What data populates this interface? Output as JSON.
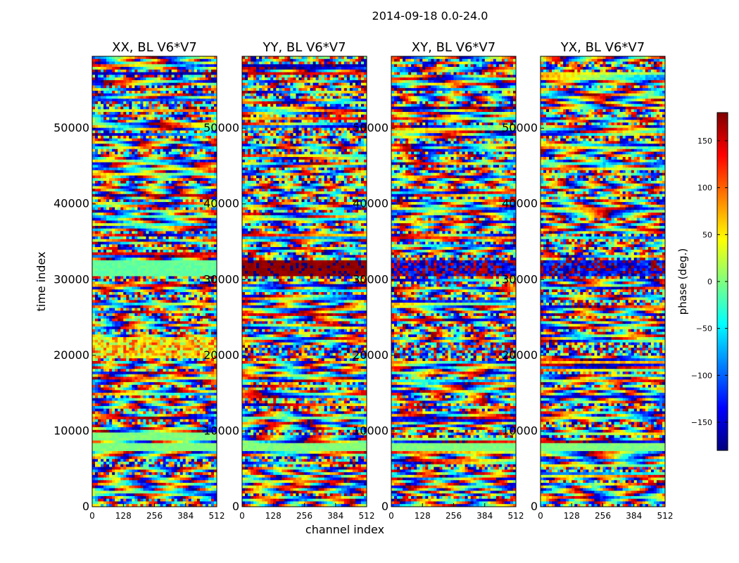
{
  "figure_title": "2014-09-18 0.0-24.0",
  "xlabel": "channel index",
  "ylabel": "time index",
  "colorbar": {
    "label": "phase (deg.)",
    "range": [
      -180,
      180
    ],
    "ticks": [
      -150,
      -100,
      -50,
      0,
      50,
      100,
      150
    ],
    "tick_labels": [
      "−150",
      "−100",
      "−50",
      "0",
      "50",
      "100",
      "150"
    ],
    "colormap": "jet",
    "colors": [
      "#00007f",
      "#0000ff",
      "#007fff",
      "#00ffff",
      "#7fff7f",
      "#ffff00",
      "#ff7f00",
      "#ff0000",
      "#7f0000"
    ]
  },
  "chart_data": [
    {
      "type": "heatmap",
      "title": "XX, BL V6*V7",
      "xlabel": "channel index",
      "ylabel": "time index",
      "xlim": [
        0,
        512
      ],
      "ylim": [
        0,
        59500
      ],
      "x_ticks": [
        0,
        128,
        256,
        384,
        512
      ],
      "y_ticks": [
        0,
        10000,
        20000,
        30000,
        40000,
        50000
      ],
      "value_label": "phase (deg.)",
      "value_range": [
        -180,
        180
      ],
      "notable_bands": [
        {
          "t_from": 30500,
          "t_to": 32500,
          "phase_deg": -10,
          "description": "smooth"
        },
        {
          "t_from": 7200,
          "t_to": 8500,
          "phase_deg": 0,
          "description": "flat"
        },
        {
          "t_from": 8900,
          "t_to": 9700,
          "phase_deg": 0,
          "description": "flat"
        },
        {
          "t_from": 19500,
          "t_to": 22500,
          "phase_deg": 60,
          "description": "mixed"
        }
      ]
    },
    {
      "type": "heatmap",
      "title": "YY, BL V6*V7",
      "xlabel": "channel index",
      "ylabel": "time index",
      "xlim": [
        0,
        512
      ],
      "ylim": [
        0,
        59500
      ],
      "x_ticks": [
        0,
        128,
        256,
        384,
        512
      ],
      "y_ticks": [
        0,
        10000,
        20000,
        30000,
        40000,
        50000
      ],
      "value_label": "phase (deg.)",
      "value_range": [
        -180,
        180
      ],
      "notable_bands": [
        {
          "t_from": 30500,
          "t_to": 32500,
          "phase_deg": 175,
          "description": "constant"
        },
        {
          "t_from": 7200,
          "t_to": 8500,
          "phase_deg": 0,
          "description": "flat"
        },
        {
          "t_from": 20000,
          "t_to": 21500,
          "phase_deg": 180,
          "description": "noisy"
        }
      ]
    },
    {
      "type": "heatmap",
      "title": "XY, BL V6*V7",
      "xlabel": "channel index",
      "ylabel": "time index",
      "xlim": [
        0,
        512
      ],
      "ylim": [
        0,
        59500
      ],
      "x_ticks": [
        0,
        128,
        256,
        384,
        512
      ],
      "y_ticks": [
        0,
        10000,
        20000,
        30000,
        40000,
        50000
      ],
      "value_label": "phase (deg.)",
      "value_range": [
        -180,
        180
      ],
      "notable_bands": [
        {
          "t_from": 30500,
          "t_to": 32500,
          "phase_deg": -160,
          "description": "mixed"
        },
        {
          "t_from": 7200,
          "t_to": 8500,
          "phase_deg": 0,
          "description": "flat"
        },
        {
          "t_from": 20000,
          "t_to": 21500,
          "phase_deg": -120,
          "description": "noisy"
        }
      ]
    },
    {
      "type": "heatmap",
      "title": "YX, BL V6*V7",
      "xlabel": "channel index",
      "ylabel": "time index",
      "xlim": [
        0,
        512
      ],
      "ylim": [
        0,
        59500
      ],
      "x_ticks": [
        0,
        128,
        256,
        384,
        512
      ],
      "y_ticks": [
        0,
        10000,
        20000,
        30000,
        40000,
        50000
      ],
      "value_label": "phase (deg.)",
      "value_range": [
        -180,
        180
      ],
      "notable_bands": [
        {
          "t_from": 30500,
          "t_to": 32500,
          "phase_deg": -150,
          "description": "mixed"
        },
        {
          "t_from": 7200,
          "t_to": 8500,
          "phase_deg": 0,
          "description": "flat"
        },
        {
          "t_from": 20000,
          "t_to": 21500,
          "phase_deg": -100,
          "description": "noisy"
        }
      ]
    }
  ]
}
